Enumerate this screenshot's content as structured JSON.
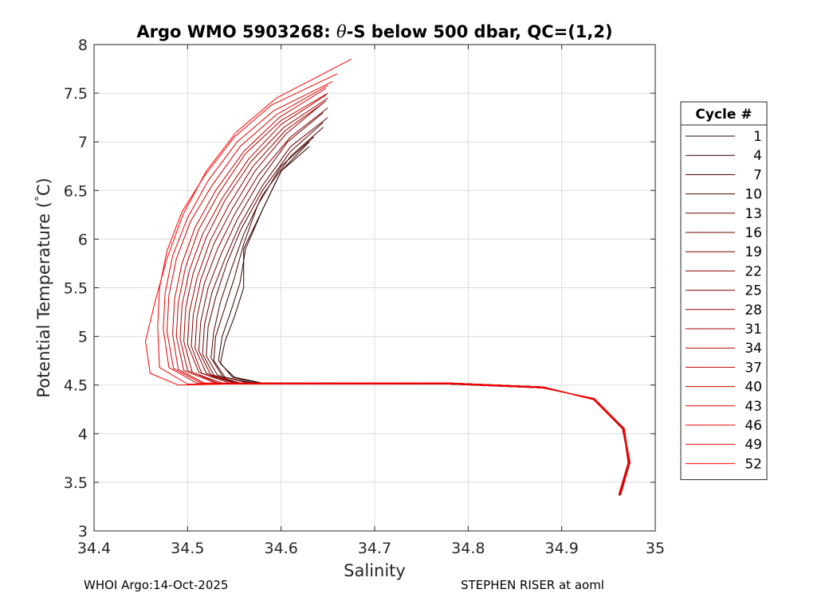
{
  "chart_data": {
    "type": "line",
    "title": "Argo WMO 5903268: θ-S below 500 dbar,  QC=(1,2)",
    "title_parts": {
      "prefix": "Argo WMO 5903268: ",
      "theta": "θ",
      "suffix": "-S below 500 dbar,  QC=(1,2)"
    },
    "xlabel": "Salinity",
    "ylabel": "Potential Temperature (°C)",
    "ylabel_parts": {
      "main": "Potential Temperature (",
      "deg": "°",
      "unit": "C)"
    },
    "xlim": [
      34.4,
      35.0
    ],
    "ylim": [
      3,
      8
    ],
    "xticks": [
      34.4,
      34.5,
      34.6,
      34.7,
      34.8,
      34.9,
      35
    ],
    "xtick_labels": [
      "34.4",
      "34.5",
      "34.6",
      "34.7",
      "34.8",
      "34.9",
      "35"
    ],
    "yticks": [
      3,
      3.5,
      4,
      4.5,
      5,
      5.5,
      6,
      6.5,
      7,
      7.5,
      8
    ],
    "ytick_labels": [
      "3",
      "3.5",
      "4",
      "4.5",
      "5",
      "5.5",
      "6",
      "6.5",
      "7",
      "7.5",
      "8"
    ],
    "grid": true,
    "legend": {
      "title": "Cycle #",
      "placement": "right-outside",
      "entries": [
        "1",
        "4",
        "7",
        "10",
        "13",
        "16",
        "19",
        "22",
        "25",
        "28",
        "31",
        "34",
        "37",
        "40",
        "43",
        "46",
        "49",
        "52"
      ]
    },
    "series_colors_start": "#2a0000",
    "series_colors_end": "#ff0000",
    "series": [
      {
        "name": "1",
        "x": [
          34.962,
          34.972,
          34.965,
          34.935,
          34.88,
          34.78,
          34.66,
          34.58,
          34.55,
          34.535,
          34.54,
          34.55,
          34.56,
          34.56,
          34.58,
          34.6,
          34.63
        ],
        "y": [
          3.36,
          3.7,
          4.05,
          4.35,
          4.48,
          4.52,
          4.52,
          4.52,
          4.58,
          4.72,
          4.95,
          5.2,
          5.5,
          5.9,
          6.3,
          6.7,
          6.95
        ]
      },
      {
        "name": "4",
        "x": [
          34.963,
          34.973,
          34.966,
          34.936,
          34.88,
          34.78,
          34.66,
          34.58,
          34.548,
          34.533,
          34.537,
          34.546,
          34.556,
          34.562,
          34.58,
          34.6,
          34.63
        ],
        "y": [
          3.38,
          3.7,
          4.05,
          4.35,
          4.48,
          4.52,
          4.51,
          4.51,
          4.58,
          4.75,
          5.0,
          5.25,
          5.55,
          5.9,
          6.3,
          6.7,
          7.0
        ]
      },
      {
        "name": "7",
        "x": [
          34.961,
          34.971,
          34.966,
          34.934,
          34.88,
          34.78,
          34.65,
          34.57,
          34.54,
          34.528,
          34.53,
          34.54,
          34.55,
          34.56,
          34.575,
          34.6,
          34.635
        ],
        "y": [
          3.37,
          3.7,
          4.06,
          4.36,
          4.47,
          4.51,
          4.52,
          4.52,
          4.58,
          4.75,
          5.0,
          5.3,
          5.6,
          5.95,
          6.35,
          6.75,
          7.05
        ]
      },
      {
        "name": "10",
        "x": [
          34.962,
          34.972,
          34.965,
          34.934,
          34.88,
          34.78,
          34.65,
          34.57,
          34.538,
          34.525,
          34.528,
          34.535,
          34.547,
          34.56,
          34.58,
          34.61,
          34.645
        ],
        "y": [
          3.38,
          3.72,
          4.06,
          4.35,
          4.48,
          4.52,
          4.51,
          4.52,
          4.58,
          4.78,
          5.05,
          5.35,
          5.7,
          6.05,
          6.45,
          6.85,
          7.15
        ]
      },
      {
        "name": "13",
        "x": [
          34.963,
          34.973,
          34.966,
          34.935,
          34.88,
          34.78,
          34.65,
          34.565,
          34.532,
          34.52,
          34.522,
          34.53,
          34.542,
          34.557,
          34.58,
          34.61,
          34.645
        ],
        "y": [
          3.37,
          3.71,
          4.05,
          4.36,
          4.47,
          4.52,
          4.52,
          4.52,
          4.6,
          4.8,
          5.1,
          5.4,
          5.75,
          6.1,
          6.5,
          6.9,
          7.2
        ]
      },
      {
        "name": "16",
        "x": [
          34.962,
          34.972,
          34.967,
          34.935,
          34.88,
          34.78,
          34.65,
          34.56,
          34.528,
          34.516,
          34.518,
          34.526,
          34.54,
          34.556,
          34.58,
          34.61,
          34.65
        ],
        "y": [
          3.38,
          3.71,
          4.05,
          4.35,
          4.48,
          4.52,
          4.51,
          4.51,
          4.6,
          4.82,
          5.12,
          5.45,
          5.8,
          6.15,
          6.55,
          6.95,
          7.25
        ]
      },
      {
        "name": "19",
        "x": [
          34.961,
          34.971,
          34.966,
          34.934,
          34.88,
          34.78,
          34.64,
          34.56,
          34.525,
          34.512,
          34.514,
          34.522,
          34.536,
          34.553,
          34.577,
          34.607,
          34.645
        ],
        "y": [
          3.37,
          3.7,
          4.06,
          4.36,
          4.47,
          4.51,
          4.52,
          4.51,
          4.6,
          4.85,
          5.15,
          5.5,
          5.85,
          6.2,
          6.6,
          7.0,
          7.3
        ]
      },
      {
        "name": "22",
        "x": [
          34.962,
          34.972,
          34.965,
          34.934,
          34.88,
          34.78,
          34.64,
          34.555,
          34.52,
          34.508,
          34.51,
          34.518,
          34.532,
          34.55,
          34.575,
          34.61,
          34.65
        ],
        "y": [
          3.38,
          3.72,
          4.05,
          4.35,
          4.48,
          4.52,
          4.52,
          4.51,
          4.62,
          4.88,
          5.2,
          5.55,
          5.9,
          6.25,
          6.65,
          7.05,
          7.35
        ]
      },
      {
        "name": "25",
        "x": [
          34.963,
          34.973,
          34.966,
          34.935,
          34.88,
          34.78,
          34.64,
          34.55,
          34.515,
          34.504,
          34.506,
          34.514,
          34.528,
          34.547,
          34.572,
          34.605,
          34.645
        ],
        "y": [
          3.37,
          3.71,
          4.06,
          4.36,
          4.47,
          4.52,
          4.51,
          4.52,
          4.62,
          4.9,
          5.22,
          5.58,
          5.95,
          6.3,
          6.7,
          7.08,
          7.4
        ]
      },
      {
        "name": "28",
        "x": [
          34.962,
          34.972,
          34.967,
          34.935,
          34.88,
          34.78,
          34.63,
          34.545,
          34.512,
          34.5,
          34.502,
          34.51,
          34.524,
          34.544,
          34.57,
          34.605,
          34.648
        ],
        "y": [
          3.38,
          3.71,
          4.05,
          4.35,
          4.48,
          4.52,
          4.52,
          4.52,
          4.63,
          4.92,
          5.25,
          5.6,
          5.98,
          6.35,
          6.75,
          7.12,
          7.42
        ]
      },
      {
        "name": "31",
        "x": [
          34.961,
          34.971,
          34.966,
          34.934,
          34.88,
          34.78,
          34.63,
          34.54,
          34.505,
          34.496,
          34.498,
          34.506,
          34.52,
          34.54,
          34.568,
          34.603,
          34.65
        ],
        "y": [
          3.37,
          3.7,
          4.06,
          4.36,
          4.47,
          4.51,
          4.51,
          4.51,
          4.63,
          4.95,
          5.3,
          5.65,
          6.02,
          6.4,
          6.8,
          7.15,
          7.45
        ]
      },
      {
        "name": "34",
        "x": [
          34.962,
          34.972,
          34.965,
          34.934,
          34.88,
          34.78,
          34.63,
          34.535,
          34.5,
          34.492,
          34.494,
          34.502,
          34.516,
          34.537,
          34.565,
          34.6,
          34.648
        ],
        "y": [
          3.38,
          3.72,
          4.05,
          4.35,
          4.48,
          4.52,
          4.52,
          4.51,
          4.65,
          4.98,
          5.32,
          5.68,
          6.05,
          6.42,
          6.82,
          7.18,
          7.48
        ]
      },
      {
        "name": "37",
        "x": [
          34.963,
          34.973,
          34.966,
          34.935,
          34.88,
          34.78,
          34.62,
          34.53,
          34.496,
          34.488,
          34.49,
          34.498,
          34.512,
          34.534,
          34.562,
          34.6,
          34.65
        ],
        "y": [
          3.37,
          3.71,
          4.06,
          4.36,
          4.47,
          4.52,
          4.51,
          4.52,
          4.65,
          5.0,
          5.35,
          5.72,
          6.1,
          6.48,
          6.88,
          7.22,
          7.5
        ]
      },
      {
        "name": "40",
        "x": [
          34.962,
          34.972,
          34.967,
          34.935,
          34.88,
          34.78,
          34.62,
          34.52,
          34.49,
          34.484,
          34.486,
          34.494,
          34.508,
          34.53,
          34.56,
          34.598,
          34.648
        ],
        "y": [
          3.38,
          3.71,
          4.05,
          4.35,
          4.48,
          4.52,
          4.52,
          4.51,
          4.66,
          5.02,
          5.38,
          5.75,
          6.12,
          6.5,
          6.9,
          7.25,
          7.55
        ]
      },
      {
        "name": "43",
        "x": [
          34.961,
          34.971,
          34.966,
          34.934,
          34.88,
          34.78,
          34.62,
          34.515,
          34.485,
          34.478,
          34.48,
          34.488,
          34.503,
          34.526,
          34.556,
          34.595,
          34.65
        ],
        "y": [
          3.37,
          3.7,
          4.06,
          4.36,
          4.47,
          4.51,
          4.51,
          4.52,
          4.67,
          5.05,
          5.42,
          5.8,
          6.18,
          6.55,
          6.95,
          7.28,
          7.58
        ]
      },
      {
        "name": "46",
        "x": [
          34.962,
          34.972,
          34.965,
          34.934,
          34.88,
          34.78,
          34.61,
          34.51,
          34.48,
          34.474,
          34.476,
          34.484,
          34.5,
          34.522,
          34.553,
          34.592,
          34.655
        ],
        "y": [
          3.38,
          3.72,
          4.05,
          4.35,
          4.48,
          4.52,
          4.52,
          4.52,
          4.68,
          5.08,
          5.45,
          5.83,
          6.22,
          6.6,
          7.0,
          7.32,
          7.62
        ]
      },
      {
        "name": "49",
        "x": [
          34.963,
          34.973,
          34.966,
          34.935,
          34.88,
          34.78,
          34.61,
          34.5,
          34.47,
          34.468,
          34.47,
          34.478,
          34.494,
          34.518,
          34.55,
          34.59,
          34.66
        ],
        "y": [
          3.37,
          3.71,
          4.06,
          4.36,
          4.47,
          4.52,
          4.51,
          4.51,
          4.68,
          5.1,
          5.5,
          5.88,
          6.28,
          6.65,
          7.05,
          7.38,
          7.7
        ]
      },
      {
        "name": "52",
        "x": [
          34.962,
          34.972,
          34.967,
          34.935,
          34.88,
          34.78,
          34.6,
          34.49,
          34.46,
          34.455,
          34.465,
          34.478,
          34.495,
          34.52,
          34.552,
          34.595,
          34.675
        ],
        "y": [
          3.38,
          3.71,
          4.05,
          4.35,
          4.48,
          4.52,
          4.52,
          4.5,
          4.62,
          4.95,
          5.35,
          5.8,
          6.25,
          6.7,
          7.1,
          7.45,
          7.85
        ]
      }
    ]
  },
  "footer": {
    "left": "WHOI Argo:14-Oct-2025",
    "right": "STEPHEN RISER at aoml"
  }
}
